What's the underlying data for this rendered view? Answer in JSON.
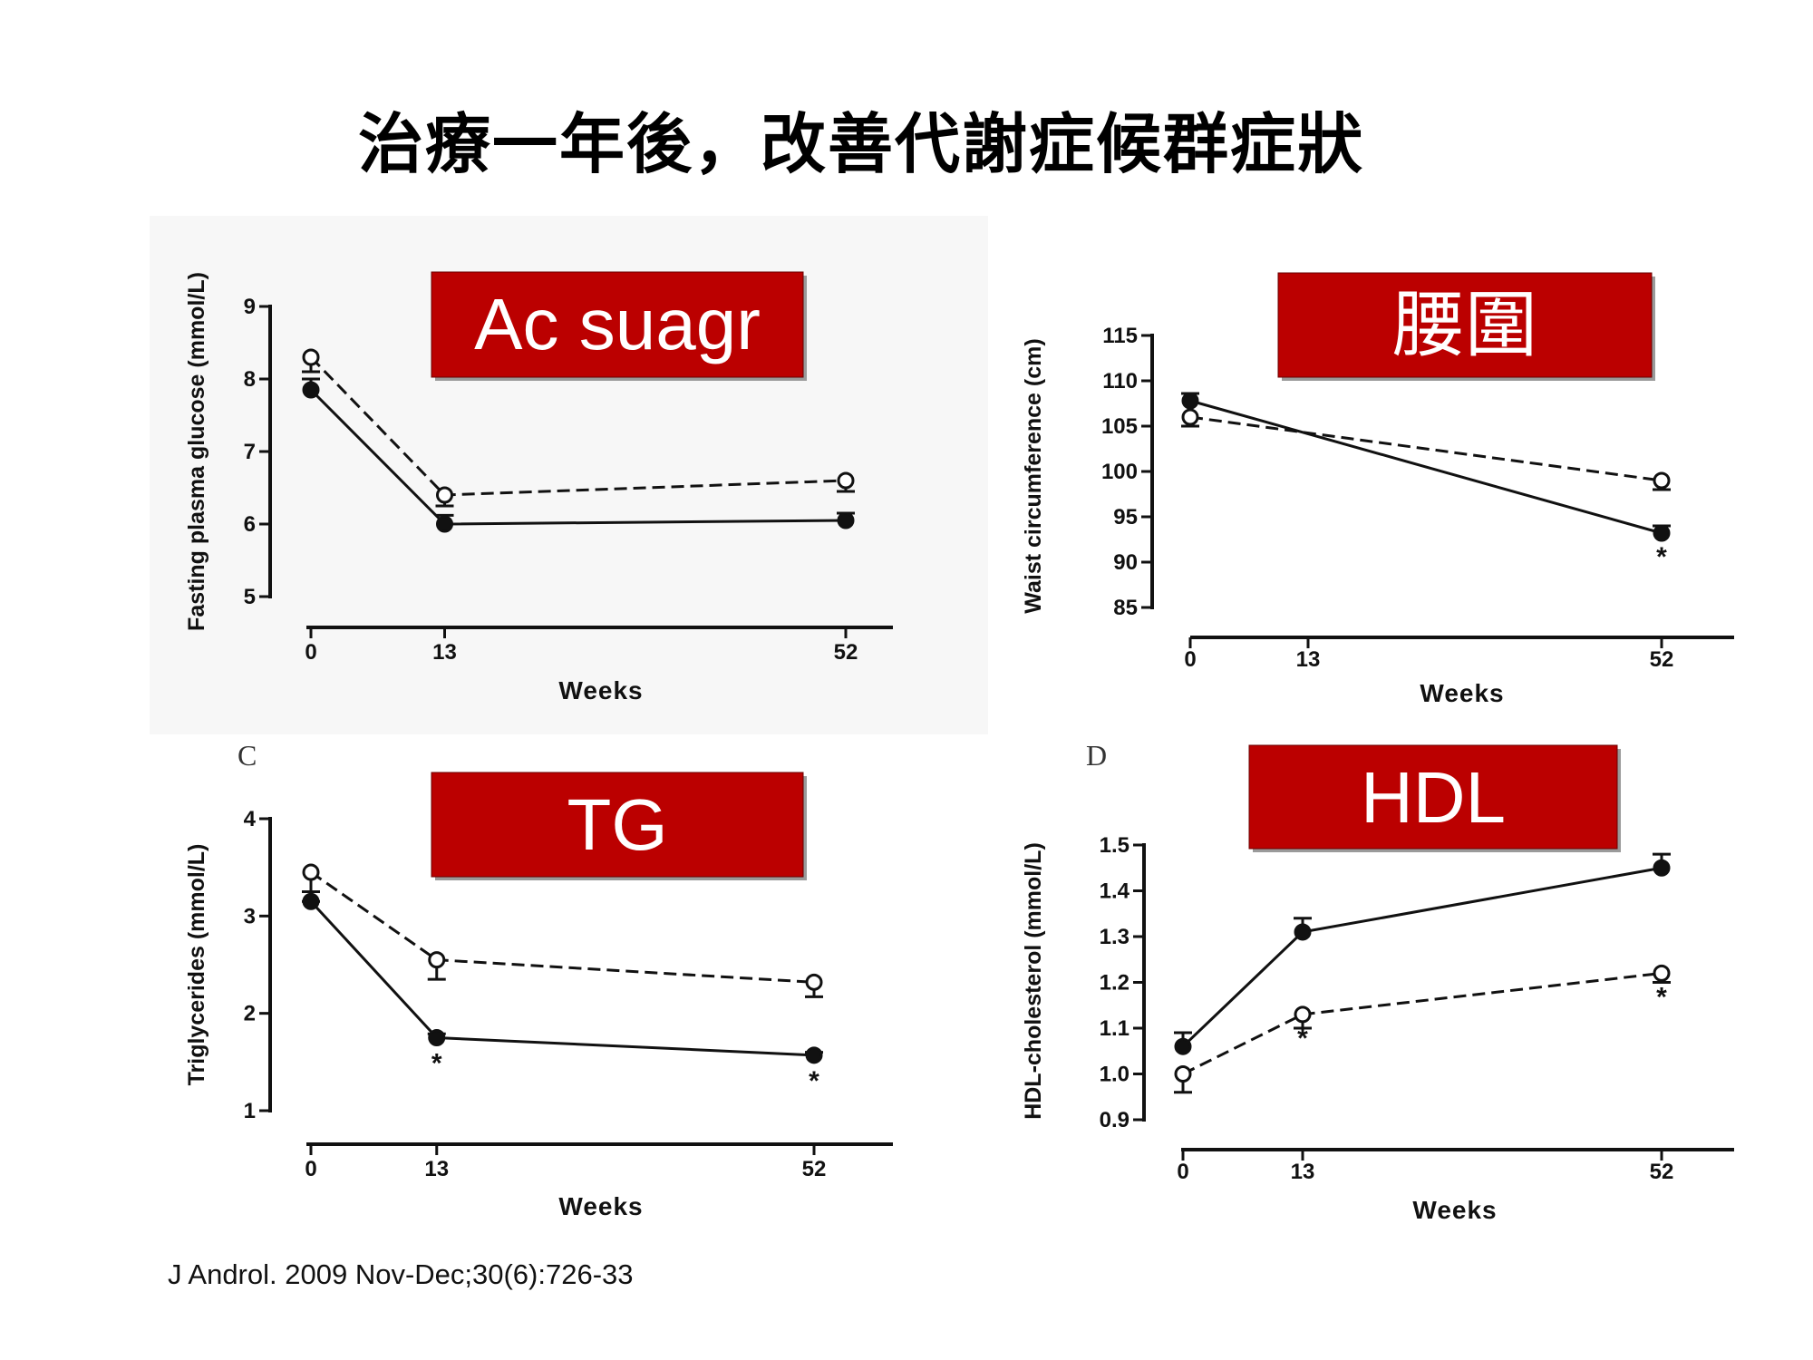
{
  "title": "治療一年後，改善代謝症候群症狀",
  "citation": "J Androl. 2009 Nov-Dec;30(6):726-33",
  "colors": {
    "banner_fill": "#bb0000",
    "line": "#111111",
    "background": "#ffffff"
  },
  "chart_data": [
    {
      "type": "line",
      "banner": "Ac suagr",
      "panel_letter": "",
      "xlabel": "Weeks",
      "ylabel": "Fasting plasma glucose (mmol/L)",
      "x": [
        0,
        13,
        52
      ],
      "x_ticks": [
        "0",
        "13",
        "52"
      ],
      "y_ticks": [
        "5",
        "6",
        "7",
        "8",
        "9"
      ],
      "ylim": [
        5,
        9
      ],
      "series": [
        {
          "style": "open-circle-dashed",
          "values": [
            8.3,
            6.4,
            6.6
          ],
          "error": [
            0.2,
            0.15,
            0.15
          ],
          "significance": [
            "",
            "",
            ""
          ]
        },
        {
          "style": "filled-circle-solid",
          "values": [
            7.85,
            6.0,
            6.05
          ],
          "error": [
            0.15,
            0.12,
            0.1
          ],
          "significance": [
            "",
            "",
            ""
          ]
        }
      ]
    },
    {
      "type": "line",
      "banner": "腰圍",
      "panel_letter": "",
      "xlabel": "Weeks",
      "ylabel": "Waist circumference (cm)",
      "x": [
        0,
        13,
        52
      ],
      "x_ticks": [
        "0",
        "13",
        "52"
      ],
      "y_ticks": [
        "85",
        "90",
        "95",
        "100",
        "105",
        "110",
        "115"
      ],
      "ylim": [
        85,
        115
      ],
      "series": [
        {
          "style": "open-circle-dashed",
          "points": [
            [
              0,
              106
            ],
            [
              52,
              99
            ]
          ],
          "error": [
            1,
            1
          ],
          "significance": [
            "",
            ""
          ]
        },
        {
          "style": "filled-circle-solid",
          "points": [
            [
              0,
              107.8
            ],
            [
              52,
              93.2
            ]
          ],
          "error": [
            0.8,
            0.8
          ],
          "significance": [
            "",
            "*"
          ]
        }
      ]
    },
    {
      "type": "line",
      "banner": "TG",
      "panel_letter": "C",
      "xlabel": "Weeks",
      "ylabel": "Triglycerides (mmol/L)",
      "x": [
        0,
        13,
        52
      ],
      "x_ticks": [
        "0",
        "13",
        "52"
      ],
      "y_ticks": [
        "1",
        "2",
        "3",
        "4"
      ],
      "ylim": [
        1,
        4
      ],
      "series": [
        {
          "style": "open-circle-dashed",
          "values": [
            3.45,
            2.55,
            2.32
          ],
          "error": [
            0.3,
            0.2,
            0.15
          ],
          "significance": [
            "",
            "",
            ""
          ]
        },
        {
          "style": "filled-circle-solid",
          "values": [
            3.15,
            1.75,
            1.57
          ],
          "error": [
            0.1,
            0.04,
            0.03
          ],
          "significance": [
            "",
            "*",
            "*"
          ]
        }
      ]
    },
    {
      "type": "line",
      "banner": "HDL",
      "panel_letter": "D",
      "xlabel": "Weeks",
      "ylabel": "HDL-cholesterol (mmol/L)",
      "x": [
        0,
        13,
        52
      ],
      "x_ticks": [
        "0",
        "13",
        "52"
      ],
      "y_ticks": [
        "0.9",
        "1.0",
        "1.1",
        "1.2",
        "1.3",
        "1.4",
        "1.5"
      ],
      "ylim": [
        0.9,
        1.5
      ],
      "series": [
        {
          "style": "open-circle-dashed",
          "values": [
            1.0,
            1.13,
            1.22
          ],
          "error": [
            0.04,
            0.03,
            0.02
          ],
          "significance": [
            "",
            "*",
            "*"
          ]
        },
        {
          "style": "filled-circle-solid",
          "values": [
            1.06,
            1.31,
            1.45
          ],
          "error": [
            0.03,
            0.03,
            0.03
          ],
          "significance": [
            "",
            "",
            ""
          ]
        }
      ]
    }
  ]
}
